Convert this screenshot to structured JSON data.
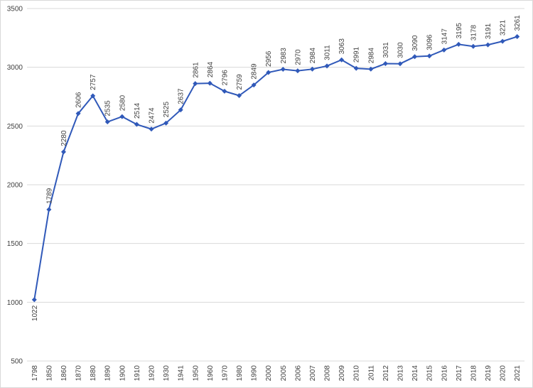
{
  "chart_data": {
    "type": "line",
    "categories": [
      "1798",
      "1850",
      "1860",
      "1870",
      "1880",
      "1890",
      "1900",
      "1910",
      "1920",
      "1930",
      "1941",
      "1950",
      "1960",
      "1970",
      "1980",
      "1990",
      "2000",
      "2005",
      "2006",
      "2007",
      "2008",
      "2009",
      "2010",
      "2011",
      "2012",
      "2013",
      "2014",
      "2015",
      "2016",
      "2017",
      "2018",
      "2019",
      "2020",
      "2021"
    ],
    "values": [
      1022,
      1789,
      2280,
      2606,
      2757,
      2535,
      2580,
      2514,
      2474,
      2525,
      2637,
      2861,
      2864,
      2796,
      2759,
      2849,
      2956,
      2983,
      2970,
      2984,
      3011,
      3063,
      2991,
      2984,
      3031,
      3030,
      3090,
      3096,
      3147,
      3195,
      3178,
      3191,
      3221,
      3261
    ],
    "color": "#3059b9",
    "ylim": [
      500,
      3500
    ],
    "yticks": [
      500,
      1000,
      1500,
      2000,
      2500,
      3000,
      3500
    ],
    "grid": true
  }
}
